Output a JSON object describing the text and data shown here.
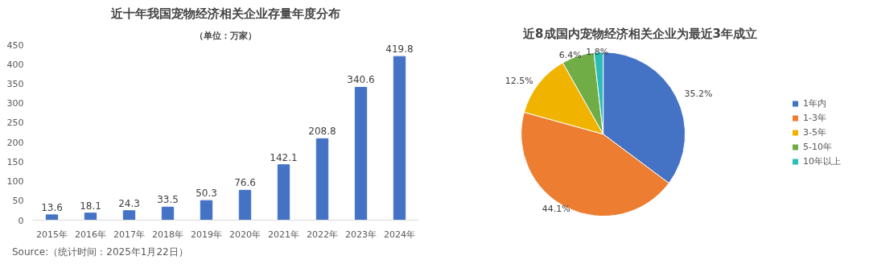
{
  "chart_data": [
    {
      "type": "bar",
      "title": "近十年我国宠物经济相关企业存量年度分布",
      "subtitle": "（单位：万家）",
      "categories": [
        "2015年",
        "2016年",
        "2017年",
        "2018年",
        "2019年",
        "2020年",
        "2021年",
        "2022年",
        "2023年",
        "2024年"
      ],
      "values": [
        13.6,
        18.1,
        24.3,
        33.5,
        50.3,
        76.6,
        142.1,
        208.8,
        340.6,
        419.8
      ],
      "color": "#4472c4",
      "ylim": [
        0,
        450
      ],
      "yticks": [
        0,
        50,
        100,
        150,
        200,
        250,
        300,
        350,
        400,
        450
      ],
      "data_labels": true,
      "annotations": [
        "Source:（统计时间：2025年1月22日）"
      ]
    },
    {
      "type": "pie",
      "title": "近8成国内宠物经济相关企业为最近3年成立",
      "categories": [
        "1年内",
        "1-3年",
        "3-5年",
        "5-10年",
        "10年以上"
      ],
      "values": [
        35.2,
        44.1,
        12.5,
        6.4,
        1.8
      ],
      "colors": [
        "#4472c4",
        "#ed7d31",
        "#f0b400",
        "#70ad47",
        "#2cbcb8"
      ],
      "value_labels": [
        "35.2%",
        "44.1%",
        "12.5%",
        "6.4%",
        "1.8%"
      ],
      "legend": "right"
    }
  ]
}
